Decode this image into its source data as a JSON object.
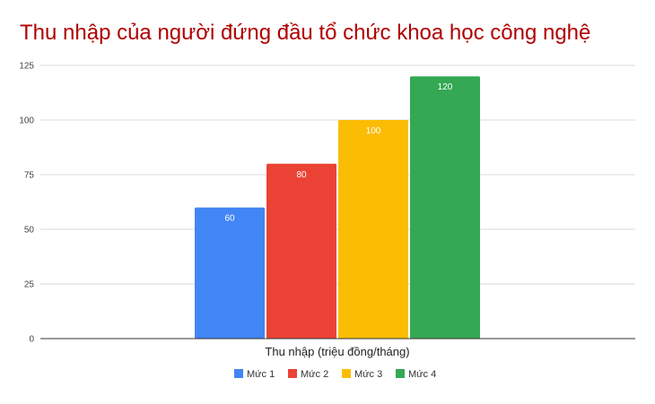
{
  "chart_data": {
    "type": "bar",
    "title": "Thu nhập của người đứng đầu tổ chức khoa học công nghệ",
    "xlabel": "Thu nhập (triệu đồng/tháng)",
    "ylabel": "",
    "categories": [
      "Thu nhập (triệu đồng/tháng)"
    ],
    "series": [
      {
        "name": "Mức 1",
        "values": [
          60
        ],
        "color": "#4285f4"
      },
      {
        "name": "Mức 2",
        "values": [
          80
        ],
        "color": "#ea4335"
      },
      {
        "name": "Mức 3",
        "values": [
          100
        ],
        "color": "#fbbc04"
      },
      {
        "name": "Mức 4",
        "values": [
          120
        ],
        "color": "#34a853"
      }
    ],
    "ylim": [
      0,
      125
    ],
    "yticks": [
      "0",
      "25",
      "50",
      "75",
      "100",
      "125"
    ],
    "data_labels": [
      "60",
      "80",
      "100",
      "120"
    ],
    "grid": true,
    "legend_position": "bottom",
    "title_color": "#b00000"
  }
}
